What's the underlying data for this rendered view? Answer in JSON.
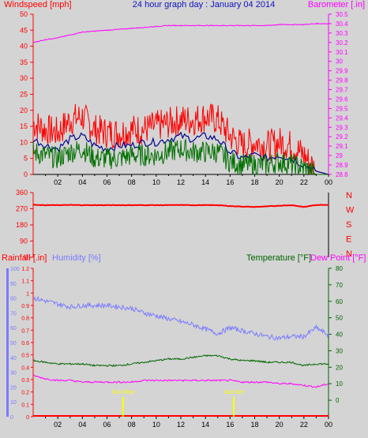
{
  "header": {
    "title": "24 hour graph day : January 04 2014",
    "left_label": "Windspeed [mph]",
    "right_label": "Barometer [.in]"
  },
  "colors": {
    "background": "#d4d4d4",
    "wind_gust": "#ff0000",
    "wind_avg": "#00008b",
    "wind_speed": "#007000",
    "barometer": "#ff00ff",
    "direction": "#ff0000",
    "rain": "#ff0000",
    "humidity": "#7b7bff",
    "temperature": "#006400",
    "dewpoint": "#ff00ff",
    "sun": "#ffff00",
    "title": "#1010c0"
  },
  "x_ticks": [
    "02",
    "04",
    "06",
    "08",
    "10",
    "12",
    "14",
    "16",
    "18",
    "20",
    "22",
    "00"
  ],
  "chart_data": [
    {
      "type": "line",
      "id": "wind_barometer",
      "title": "24 hour graph day : January 04 2014",
      "xlabel": "",
      "ylabel": "Windspeed [mph]",
      "y2label": "Barometer [.in]",
      "ylim": [
        0,
        50
      ],
      "y_ticks": [
        "0",
        "5",
        "10",
        "15",
        "20",
        "25",
        "30",
        "35",
        "40",
        "45",
        "50"
      ],
      "y2lim": [
        28.8,
        30.5
      ],
      "y2_ticks": [
        "28.8",
        "28.9",
        "29",
        "29.1",
        "29.2",
        "29.3",
        "29.4",
        "29.5",
        "29.6",
        "29.7",
        "29.8",
        "29.9",
        "30",
        "30.1",
        "30.2",
        "30.3",
        "30.4",
        "30.5"
      ],
      "x": [
        0,
        1,
        2,
        3,
        4,
        5,
        6,
        7,
        8,
        9,
        10,
        11,
        12,
        13,
        14,
        15,
        16,
        17,
        18,
        19,
        20,
        21,
        22,
        23,
        24
      ],
      "series": [
        {
          "name": "Windspeed gust",
          "values": [
            16,
            14,
            13,
            17,
            18,
            14,
            13,
            13,
            14,
            14,
            15,
            16,
            17,
            17,
            18,
            17,
            12,
            9,
            10,
            9,
            10,
            9,
            6,
            1,
            0
          ]
        },
        {
          "name": "Windspeed avg",
          "values": [
            11,
            9,
            8,
            11,
            12,
            9,
            8,
            9,
            9,
            10,
            10,
            11,
            12,
            11,
            12,
            11,
            7,
            5,
            6,
            5,
            6,
            5,
            3,
            1,
            0
          ]
        },
        {
          "name": "Windspeed",
          "values": [
            7,
            6,
            5,
            7,
            8,
            5,
            5,
            5,
            6,
            6,
            6,
            7,
            8,
            7,
            7,
            7,
            4,
            3,
            3,
            3,
            4,
            3,
            2,
            0,
            0
          ]
        },
        {
          "name": "Barometer",
          "values": [
            30.2,
            30.23,
            30.25,
            30.28,
            30.31,
            30.32,
            30.33,
            30.34,
            30.35,
            30.36,
            30.37,
            30.38,
            30.38,
            30.38,
            30.38,
            30.38,
            30.38,
            30.38,
            30.38,
            30.38,
            30.39,
            30.39,
            30.39,
            30.4,
            30.4
          ]
        }
      ]
    },
    {
      "type": "line",
      "id": "wind_direction",
      "xlabel": "",
      "ylabel": "",
      "ylim": [
        0,
        360
      ],
      "y_ticks": [
        "0",
        "90",
        "180",
        "270",
        "360"
      ],
      "compass_labels": [
        "N",
        "W",
        "S",
        "E",
        "N"
      ],
      "x": [
        0,
        1,
        2,
        3,
        4,
        5,
        6,
        7,
        8,
        9,
        10,
        11,
        12,
        13,
        14,
        15,
        16,
        17,
        18,
        19,
        20,
        21,
        22,
        23,
        24
      ],
      "series": [
        {
          "name": "Wind direction",
          "values": [
            292,
            290,
            290,
            291,
            290,
            290,
            290,
            290,
            290,
            290,
            290,
            290,
            291,
            290,
            290,
            290,
            285,
            282,
            280,
            283,
            287,
            290,
            280,
            291,
            292
          ]
        }
      ]
    },
    {
      "type": "line",
      "id": "rain_humidity_temp",
      "ylabel": "Rainfall [.in]",
      "y2label": "Humidity [%]",
      "y3label": "Temperature [°F]",
      "y4label": "Dew Point [°F]",
      "rain_ylim": [
        0,
        1.2
      ],
      "rain_ticks": [
        "0",
        "0.1",
        "0.2",
        "0.3",
        "0.4",
        "0.5",
        "0.6",
        "0.7",
        "0.8",
        "0.9",
        "1",
        "1.1",
        "1.2"
      ],
      "humidity_ylim": [
        0,
        100
      ],
      "humidity_ticks": [
        "0",
        "10",
        "20",
        "30",
        "40",
        "50",
        "60",
        "70",
        "80",
        "90",
        "100"
      ],
      "temp_ylim": [
        -10,
        80
      ],
      "temp_ticks": [
        "0",
        "10",
        "20",
        "30",
        "40",
        "50",
        "60",
        "70",
        "80"
      ],
      "x": [
        0,
        1,
        2,
        3,
        4,
        5,
        6,
        7,
        8,
        9,
        10,
        11,
        12,
        13,
        14,
        15,
        16,
        17,
        18,
        19,
        20,
        21,
        22,
        23,
        24
      ],
      "series": [
        {
          "name": "Rainfall",
          "values": [
            0,
            0,
            0,
            0,
            0,
            0,
            0,
            0,
            0,
            0,
            0,
            0,
            0,
            0,
            0,
            0,
            0,
            0,
            0,
            0,
            0,
            0,
            0,
            0,
            0
          ]
        },
        {
          "name": "Humidity",
          "values": [
            80,
            78,
            76,
            74,
            75,
            75,
            75,
            74,
            73,
            70,
            68,
            66,
            64,
            62,
            59,
            56,
            60,
            58,
            56,
            54,
            53,
            54,
            54,
            60,
            55
          ]
        },
        {
          "name": "Temperature",
          "values": [
            24,
            23,
            22,
            22,
            22,
            21,
            21,
            21,
            22,
            23,
            24,
            25,
            25,
            26,
            27,
            27,
            25,
            24,
            24,
            23,
            23,
            23,
            21,
            22,
            22
          ]
        },
        {
          "name": "Dew Point",
          "values": [
            15,
            13,
            12,
            12,
            11,
            11,
            11,
            11,
            11,
            12,
            12,
            12,
            12,
            12,
            12,
            12,
            12,
            11,
            11,
            11,
            10,
            10,
            9,
            8,
            10
          ]
        }
      ],
      "annotations": [
        "Sun Rise",
        "Sun Set"
      ],
      "sunrise_hour": 7.3,
      "sunset_hour": 16.3
    }
  ]
}
